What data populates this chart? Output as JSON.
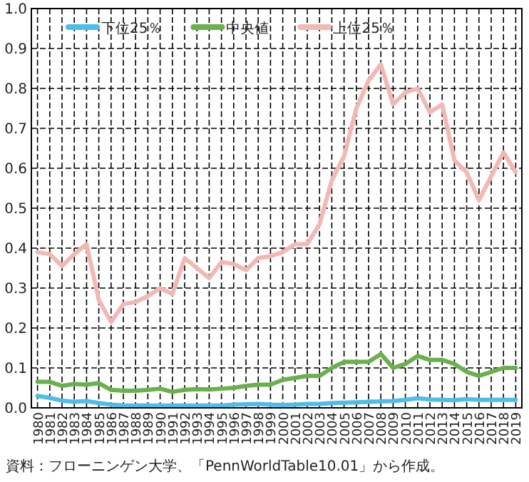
{
  "chart_data": {
    "type": "line",
    "categories": [
      "1980",
      "1981",
      "1982",
      "1983",
      "1984",
      "1985",
      "1986",
      "1987",
      "1988",
      "1989",
      "1990",
      "1991",
      "1992",
      "1993",
      "1994",
      "1995",
      "1996",
      "1997",
      "1998",
      "1999",
      "2000",
      "2001",
      "2002",
      "2003",
      "2004",
      "2005",
      "2006",
      "2007",
      "2008",
      "2009",
      "2010",
      "2011",
      "2012",
      "2013",
      "2014",
      "2015",
      "2016",
      "2017",
      "2018",
      "2019"
    ],
    "series": [
      {
        "name": "下位25％",
        "color": "#4fbde9",
        "values": [
          0.03,
          0.025,
          0.018,
          0.015,
          0.017,
          0.012,
          0.008,
          0.006,
          0.006,
          0.006,
          0.006,
          0.006,
          0.006,
          0.006,
          0.006,
          0.006,
          0.008,
          0.009,
          0.01,
          0.008,
          0.007,
          0.008,
          0.01,
          0.01,
          0.012,
          0.013,
          0.014,
          0.015,
          0.016,
          0.017,
          0.02,
          0.024,
          0.021,
          0.02,
          0.019,
          0.022,
          0.02,
          0.02,
          0.02,
          0.02
        ]
      },
      {
        "name": "中央値",
        "color": "#6ab04c",
        "values": [
          0.065,
          0.065,
          0.055,
          0.06,
          0.058,
          0.062,
          0.045,
          0.043,
          0.043,
          0.045,
          0.048,
          0.04,
          0.045,
          0.047,
          0.046,
          0.048,
          0.05,
          0.055,
          0.058,
          0.058,
          0.07,
          0.075,
          0.08,
          0.08,
          0.1,
          0.115,
          0.115,
          0.115,
          0.135,
          0.1,
          0.11,
          0.13,
          0.12,
          0.12,
          0.11,
          0.09,
          0.08,
          0.09,
          0.1,
          0.1
        ]
      },
      {
        "name": "上位25％",
        "color": "#f2b8b3",
        "values": [
          0.39,
          0.385,
          0.355,
          0.385,
          0.41,
          0.27,
          0.215,
          0.26,
          0.265,
          0.28,
          0.3,
          0.285,
          0.375,
          0.35,
          0.325,
          0.365,
          0.36,
          0.345,
          0.375,
          0.38,
          0.39,
          0.41,
          0.41,
          0.46,
          0.57,
          0.63,
          0.75,
          0.82,
          0.86,
          0.76,
          0.79,
          0.8,
          0.74,
          0.76,
          0.62,
          0.59,
          0.52,
          0.58,
          0.64,
          0.59
        ]
      }
    ],
    "ylim": [
      0,
      1
    ],
    "yticks": [
      {
        "value": 0,
        "label": "0.0"
      },
      {
        "value": 0.1,
        "label": "0.1"
      },
      {
        "value": 0.2,
        "label": "0.2"
      },
      {
        "value": 0.3,
        "label": "0.3"
      },
      {
        "value": 0.4,
        "label": "0.4"
      },
      {
        "value": 0.5,
        "label": "0.5"
      },
      {
        "value": 0.6,
        "label": "0.6"
      },
      {
        "value": 0.7,
        "label": "0.7"
      },
      {
        "value": 0.8,
        "label": "0.8"
      },
      {
        "value": 0.9,
        "label": "0.9"
      },
      {
        "value": 1,
        "label": "1.0"
      }
    ],
    "grid": true,
    "legend": "top",
    "marker": "none",
    "line_style": "solid",
    "annotations": [
      "資料：フローニンゲン大学、「PennWorldTable10.01」から作成。"
    ]
  }
}
